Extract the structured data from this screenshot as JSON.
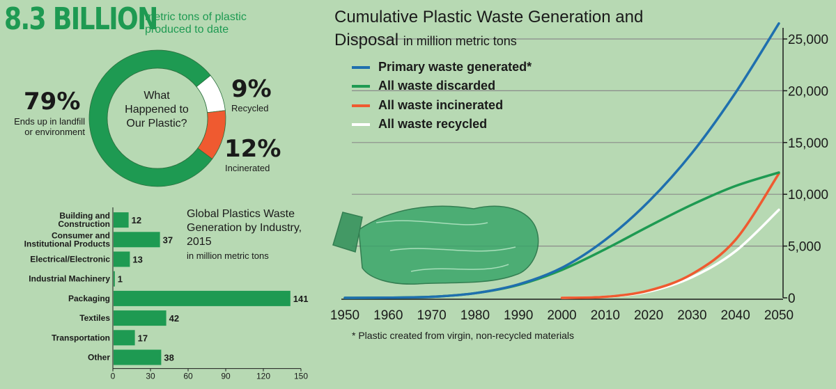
{
  "headline": {
    "big": "8.3 BILLION",
    "sub": "metric tons of plastic produced to date"
  },
  "donut": {
    "center_text": "What Happened to Our Plastic?",
    "slices": [
      {
        "pct_text": "79%",
        "label": "Ends up in landfill or environment",
        "value": 79,
        "color": "#1e9a52"
      },
      {
        "pct_text": "9%",
        "label": "Recycled",
        "value": 9,
        "color": "#ffffff"
      },
      {
        "pct_text": "12%",
        "label": "Incinerated",
        "value": 12,
        "color": "#ef5a30"
      }
    ]
  },
  "bar_chart": {
    "title": "Global Plastics Waste Generation by Industry, 2015",
    "unit": "in million metric tons"
  },
  "line_chart": {
    "title": "Cumulative Plastic Waste Generation and Disposal",
    "unit": "in million metric tons",
    "footnote": "* Plastic created from virgin, non-recycled materials",
    "legend": [
      {
        "label": "Primary waste generated*",
        "color": "#1f6fae"
      },
      {
        "label": "All waste discarded",
        "color": "#1e9a52"
      },
      {
        "label": "All waste incinerated",
        "color": "#ef5a30"
      },
      {
        "label": "All waste recycled",
        "color": "#ffffff"
      }
    ]
  },
  "chart_data": [
    {
      "type": "pie",
      "title": "What Happened to Our Plastic?",
      "categories": [
        "Ends up in landfill or environment",
        "Recycled",
        "Incinerated"
      ],
      "values": [
        79,
        9,
        12
      ]
    },
    {
      "type": "bar",
      "orientation": "horizontal",
      "title": "Global Plastics Waste Generation by Industry, 2015",
      "subtitle": "in million metric tons",
      "categories": [
        "Building and Construction",
        "Consumer and Institutional Products",
        "Electrical/Electronic",
        "Industrial Machinery",
        "Packaging",
        "Textiles",
        "Transportation",
        "Other"
      ],
      "values": [
        12,
        37,
        13,
        1,
        141,
        42,
        17,
        38
      ],
      "ticks": [
        0,
        30,
        60,
        90,
        120,
        150
      ],
      "xlim": [
        0,
        150
      ],
      "color": "#1e9a52"
    },
    {
      "type": "line",
      "title": "Cumulative Plastic Waste Generation and Disposal",
      "subtitle": "in million metric tons",
      "x": [
        1950,
        1960,
        1970,
        1980,
        1990,
        2000,
        2010,
        2020,
        2030,
        2040,
        2050
      ],
      "xticks": [
        1950,
        1960,
        1970,
        1980,
        1990,
        2000,
        2010,
        2020,
        2030,
        2040,
        2050
      ],
      "yticks": [
        0,
        5000,
        10000,
        15000,
        20000,
        25000
      ],
      "ytick_labels": [
        "0",
        "5,000",
        "10,000",
        "15,000",
        "20,000",
        "25,000"
      ],
      "xlim": [
        1950,
        2050
      ],
      "ylim": [
        0,
        25000
      ],
      "grid": true,
      "legend_position": "top-left",
      "series": [
        {
          "name": "Primary waste generated*",
          "color": "#1f6fae",
          "values": [
            0,
            20,
            100,
            450,
            1300,
            2900,
            5600,
            9300,
            14000,
            19800,
            26500
          ]
        },
        {
          "name": "All waste discarded",
          "color": "#1e9a52",
          "values": [
            0,
            20,
            100,
            450,
            1250,
            2700,
            4700,
            6900,
            9000,
            10800,
            12100
          ]
        },
        {
          "name": "All waste incinerated",
          "color": "#ef5a30",
          "values": [
            0,
            0,
            0,
            0,
            0,
            0,
            100,
            700,
            2300,
            5600,
            12000
          ]
        },
        {
          "name": "All waste recycled",
          "color": "#ffffff",
          "values": [
            0,
            0,
            0,
            0,
            0,
            0,
            100,
            600,
            2000,
            4500,
            8500
          ]
        }
      ]
    }
  ]
}
